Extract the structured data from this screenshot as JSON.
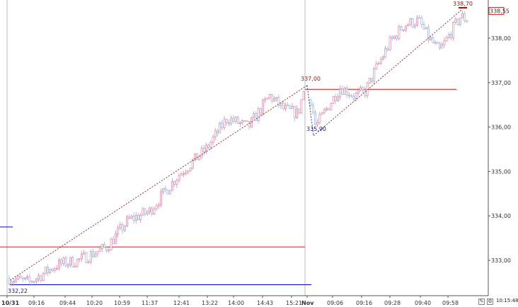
{
  "chart_data": {
    "type": "candlestick",
    "y_ticks": [
      {
        "value": 333.0,
        "label": "333,00"
      },
      {
        "value": 334.0,
        "label": "334,00"
      },
      {
        "value": 335.0,
        "label": "335,00"
      },
      {
        "value": 336.0,
        "label": "336,00"
      },
      {
        "value": 337.0,
        "label": "337,00"
      },
      {
        "value": 338.0,
        "label": "338,00"
      }
    ],
    "ylim": [
      332.45,
      338.85
    ],
    "x_ticks": [
      "10/31",
      "09:16",
      "09:44",
      "10:20",
      "10:59",
      "11:37",
      "12:41",
      "13:22",
      "14:00",
      "14:43",
      "15:21",
      "Nov",
      "09:06",
      "09:16",
      "09:28",
      "09:40",
      "09:58"
    ],
    "session_break_after_label": "15:21",
    "annotations": [
      {
        "label": "332,22",
        "value": 332.22,
        "color": "#1a1a8c"
      },
      {
        "label": "337,00",
        "value": 337.0,
        "color": "#8b1a1a"
      },
      {
        "label": "335,90",
        "value": 335.9,
        "color": "#1a1a8c"
      },
      {
        "label": "338,70",
        "value": 338.7,
        "color": "#8b1a1a"
      }
    ],
    "current_price": {
      "label": "338,55",
      "value": 338.55,
      "color": "#cc0000"
    },
    "horizontal_lines": [
      {
        "value": 333.3,
        "color": "#ff0000",
        "session": 1
      },
      {
        "value": 332.45,
        "color": "#0000cc",
        "session": 1
      },
      {
        "value": 333.75,
        "color": "#0000cc",
        "session": 1
      },
      {
        "value": 336.85,
        "color": "#ff0000",
        "session": 2
      }
    ],
    "trend_lines": [
      {
        "from": 332.22,
        "to": 337.0,
        "color": "#8b1a1a"
      },
      {
        "from": 337.0,
        "to": 335.9,
        "color": "#1a1a8c"
      },
      {
        "from": 335.9,
        "to": 338.7,
        "color": "#8b1a1a"
      }
    ],
    "up_color": "#d98aa8",
    "down_color": "#9ab4dc",
    "grid": false
  },
  "status": {
    "time": "10:15:48"
  },
  "colors": {
    "axis": "#555555",
    "session_separator": "#bbbbbb"
  }
}
